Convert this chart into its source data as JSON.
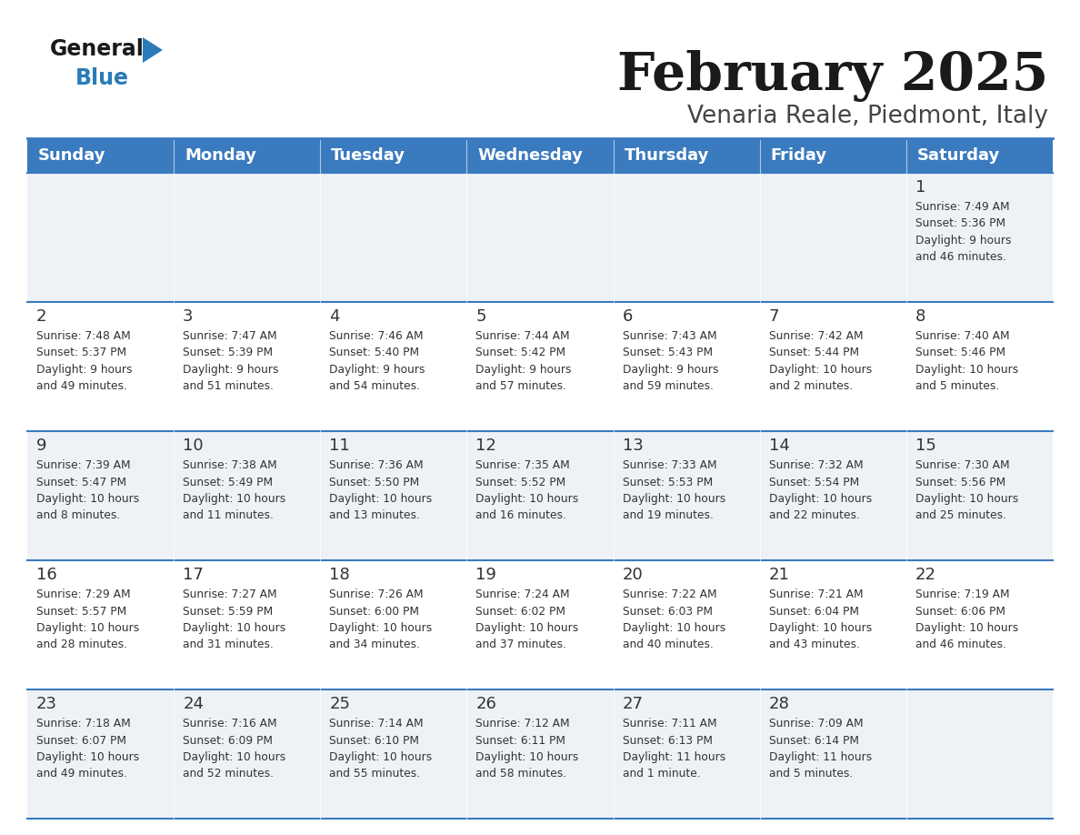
{
  "title": "February 2025",
  "subtitle": "Venaria Reale, Piedmont, Italy",
  "header_bg": "#3a7abf",
  "header_text_color": "#ffffff",
  "separator_color": "#3a7abf",
  "days_of_week": [
    "Sunday",
    "Monday",
    "Tuesday",
    "Wednesday",
    "Thursday",
    "Friday",
    "Saturday"
  ],
  "weeks": [
    [
      {
        "day": null,
        "info": null
      },
      {
        "day": null,
        "info": null
      },
      {
        "day": null,
        "info": null
      },
      {
        "day": null,
        "info": null
      },
      {
        "day": null,
        "info": null
      },
      {
        "day": null,
        "info": null
      },
      {
        "day": 1,
        "info": "Sunrise: 7:49 AM\nSunset: 5:36 PM\nDaylight: 9 hours\nand 46 minutes."
      }
    ],
    [
      {
        "day": 2,
        "info": "Sunrise: 7:48 AM\nSunset: 5:37 PM\nDaylight: 9 hours\nand 49 minutes."
      },
      {
        "day": 3,
        "info": "Sunrise: 7:47 AM\nSunset: 5:39 PM\nDaylight: 9 hours\nand 51 minutes."
      },
      {
        "day": 4,
        "info": "Sunrise: 7:46 AM\nSunset: 5:40 PM\nDaylight: 9 hours\nand 54 minutes."
      },
      {
        "day": 5,
        "info": "Sunrise: 7:44 AM\nSunset: 5:42 PM\nDaylight: 9 hours\nand 57 minutes."
      },
      {
        "day": 6,
        "info": "Sunrise: 7:43 AM\nSunset: 5:43 PM\nDaylight: 9 hours\nand 59 minutes."
      },
      {
        "day": 7,
        "info": "Sunrise: 7:42 AM\nSunset: 5:44 PM\nDaylight: 10 hours\nand 2 minutes."
      },
      {
        "day": 8,
        "info": "Sunrise: 7:40 AM\nSunset: 5:46 PM\nDaylight: 10 hours\nand 5 minutes."
      }
    ],
    [
      {
        "day": 9,
        "info": "Sunrise: 7:39 AM\nSunset: 5:47 PM\nDaylight: 10 hours\nand 8 minutes."
      },
      {
        "day": 10,
        "info": "Sunrise: 7:38 AM\nSunset: 5:49 PM\nDaylight: 10 hours\nand 11 minutes."
      },
      {
        "day": 11,
        "info": "Sunrise: 7:36 AM\nSunset: 5:50 PM\nDaylight: 10 hours\nand 13 minutes."
      },
      {
        "day": 12,
        "info": "Sunrise: 7:35 AM\nSunset: 5:52 PM\nDaylight: 10 hours\nand 16 minutes."
      },
      {
        "day": 13,
        "info": "Sunrise: 7:33 AM\nSunset: 5:53 PM\nDaylight: 10 hours\nand 19 minutes."
      },
      {
        "day": 14,
        "info": "Sunrise: 7:32 AM\nSunset: 5:54 PM\nDaylight: 10 hours\nand 22 minutes."
      },
      {
        "day": 15,
        "info": "Sunrise: 7:30 AM\nSunset: 5:56 PM\nDaylight: 10 hours\nand 25 minutes."
      }
    ],
    [
      {
        "day": 16,
        "info": "Sunrise: 7:29 AM\nSunset: 5:57 PM\nDaylight: 10 hours\nand 28 minutes."
      },
      {
        "day": 17,
        "info": "Sunrise: 7:27 AM\nSunset: 5:59 PM\nDaylight: 10 hours\nand 31 minutes."
      },
      {
        "day": 18,
        "info": "Sunrise: 7:26 AM\nSunset: 6:00 PM\nDaylight: 10 hours\nand 34 minutes."
      },
      {
        "day": 19,
        "info": "Sunrise: 7:24 AM\nSunset: 6:02 PM\nDaylight: 10 hours\nand 37 minutes."
      },
      {
        "day": 20,
        "info": "Sunrise: 7:22 AM\nSunset: 6:03 PM\nDaylight: 10 hours\nand 40 minutes."
      },
      {
        "day": 21,
        "info": "Sunrise: 7:21 AM\nSunset: 6:04 PM\nDaylight: 10 hours\nand 43 minutes."
      },
      {
        "day": 22,
        "info": "Sunrise: 7:19 AM\nSunset: 6:06 PM\nDaylight: 10 hours\nand 46 minutes."
      }
    ],
    [
      {
        "day": 23,
        "info": "Sunrise: 7:18 AM\nSunset: 6:07 PM\nDaylight: 10 hours\nand 49 minutes."
      },
      {
        "day": 24,
        "info": "Sunrise: 7:16 AM\nSunset: 6:09 PM\nDaylight: 10 hours\nand 52 minutes."
      },
      {
        "day": 25,
        "info": "Sunrise: 7:14 AM\nSunset: 6:10 PM\nDaylight: 10 hours\nand 55 minutes."
      },
      {
        "day": 26,
        "info": "Sunrise: 7:12 AM\nSunset: 6:11 PM\nDaylight: 10 hours\nand 58 minutes."
      },
      {
        "day": 27,
        "info": "Sunrise: 7:11 AM\nSunset: 6:13 PM\nDaylight: 11 hours\nand 1 minute."
      },
      {
        "day": 28,
        "info": "Sunrise: 7:09 AM\nSunset: 6:14 PM\nDaylight: 11 hours\nand 5 minutes."
      },
      {
        "day": null,
        "info": null
      }
    ]
  ],
  "logo_general_color": "#1a1a1a",
  "logo_blue_color": "#2b7bb9",
  "logo_triangle_color": "#2b7bb9"
}
